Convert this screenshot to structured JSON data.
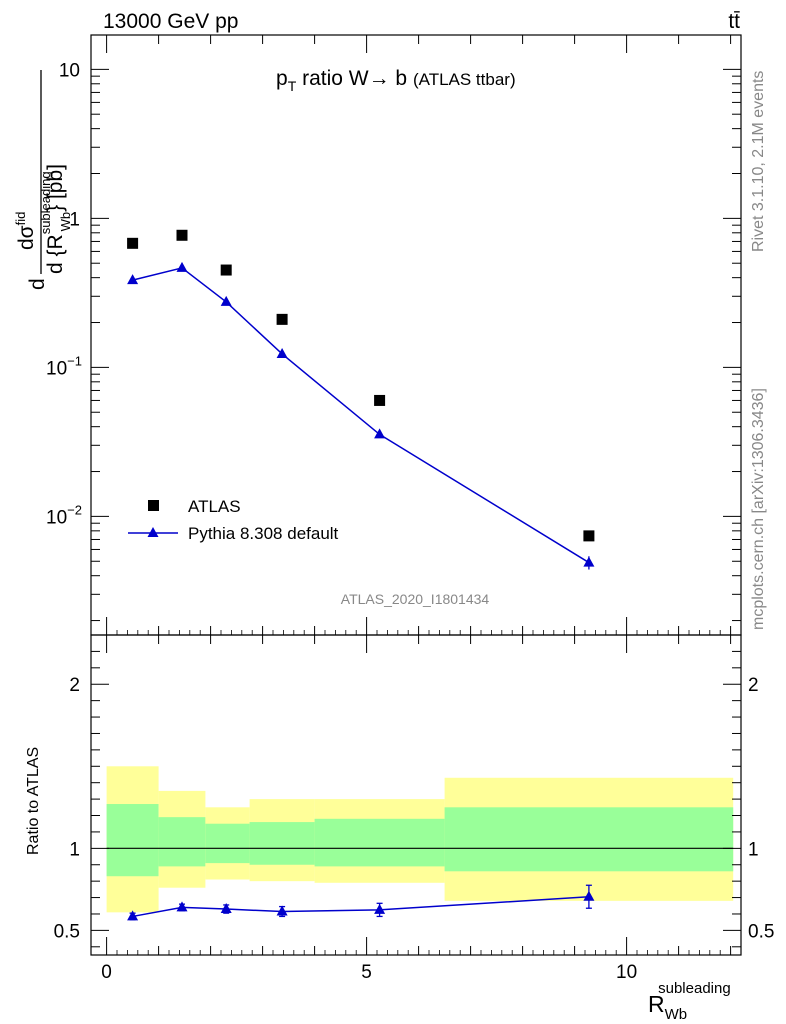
{
  "header": {
    "left": "13000 GeV pp",
    "right": "tt̄"
  },
  "side_labels": {
    "rivet": "Rivet 3.1.10,  2.1M events",
    "mcplots": "mcplots.cern.ch [arXiv:1306.3436]"
  },
  "chart_data": [
    {
      "type": "scatter",
      "title_main": "p",
      "title_sub": "T",
      "title_rest": " ratio W→ b",
      "title_paren": "(ATLAS ttbar)",
      "ylabel_num": "dσ",
      "ylabel_num_sup": "fid",
      "ylabel_den": "d {R",
      "ylabel_den_sub": "Wb",
      "ylabel_den_sup": "subleading",
      "ylabel_den_close": "} [pb]",
      "ylabel_prefix": "d",
      "yscale": "log",
      "ylim": [
        0.0016,
        17
      ],
      "xlim": [
        -0.3,
        12.2
      ],
      "yticks": [
        {
          "v": 10,
          "base": "10",
          "exp": ""
        },
        {
          "v": 1,
          "base": "1",
          "exp": ""
        },
        {
          "v": 0.1,
          "base": "10",
          "exp": "−1"
        },
        {
          "v": 0.01,
          "base": "10",
          "exp": "−2"
        }
      ],
      "watermark": "ATLAS_2020_I1801434",
      "legend_position": "bottom-left",
      "series": [
        {
          "name": "ATLAS",
          "marker": "square",
          "color": "#000000",
          "x": [
            0.5,
            1.45,
            2.3,
            3.375,
            5.25,
            9.275
          ],
          "y": [
            0.68,
            0.77,
            0.45,
            0.21,
            0.06,
            0.0074
          ]
        },
        {
          "name": "Pythia 8.308 default",
          "marker": "triangle",
          "color": "#0000cc",
          "x": [
            0.5,
            1.45,
            2.3,
            3.375,
            5.25,
            9.275
          ],
          "y": [
            0.385,
            0.465,
            0.275,
            0.123,
            0.0355,
            0.0049
          ],
          "yerr": [
            0,
            0,
            0,
            0,
            0,
            0.0005
          ]
        }
      ]
    },
    {
      "type": "line",
      "ylabel": "Ratio to ATLAS",
      "ylim": [
        0.35,
        2.3
      ],
      "xlim": [
        -0.3,
        12.2
      ],
      "yticks": [
        "0.5",
        "1",
        "2"
      ],
      "xticks": [
        "0",
        "5",
        "10"
      ],
      "xlabel": "R",
      "xlabel_sub": "Wb",
      "xlabel_sup": "subleading",
      "bands": [
        {
          "x0": 0.0,
          "x1": 1.0,
          "yellow": [
            0.61,
            1.5
          ],
          "green": [
            0.83,
            1.27
          ]
        },
        {
          "x0": 1.0,
          "x1": 1.9,
          "yellow": [
            0.76,
            1.35
          ],
          "green": [
            0.89,
            1.19
          ]
        },
        {
          "x0": 1.9,
          "x1": 2.75,
          "yellow": [
            0.81,
            1.25
          ],
          "green": [
            0.91,
            1.15
          ]
        },
        {
          "x0": 2.75,
          "x1": 4.0,
          "yellow": [
            0.8,
            1.3
          ],
          "green": [
            0.9,
            1.16
          ]
        },
        {
          "x0": 4.0,
          "x1": 6.5,
          "yellow": [
            0.79,
            1.3
          ],
          "green": [
            0.89,
            1.18
          ]
        },
        {
          "x0": 6.5,
          "x1": 12.05,
          "yellow": [
            0.68,
            1.43
          ],
          "green": [
            0.86,
            1.25
          ]
        }
      ],
      "series": [
        {
          "name": "Pythia 8.308 default",
          "color": "#0000cc",
          "x": [
            0.5,
            1.45,
            2.3,
            3.375,
            5.25,
            9.275
          ],
          "y": [
            0.585,
            0.64,
            0.63,
            0.615,
            0.625,
            0.705
          ],
          "yerr": [
            0.02,
            0.02,
            0.025,
            0.03,
            0.04,
            0.07
          ]
        }
      ]
    }
  ]
}
